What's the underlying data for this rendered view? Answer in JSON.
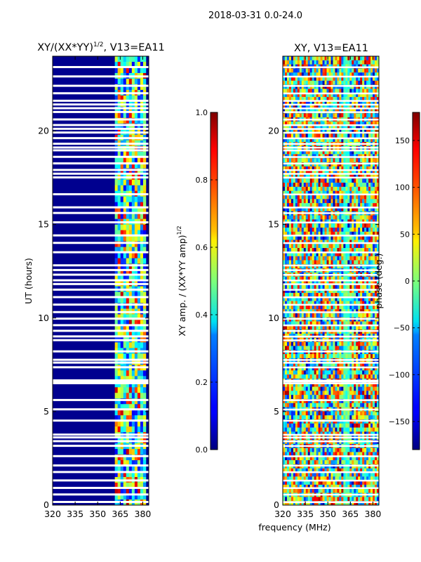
{
  "suptitle": "2018-03-31 0.0-24.0",
  "shared_xlabel": "frequency (MHz)",
  "chart_data": [
    {
      "type": "heatmap",
      "title": "XY/(XX*YY)^1/2, V13=EA11",
      "title_main": "XY/(XX*YY)",
      "title_exp": "1/2",
      "title_tail": ", V13=EA11",
      "xlabel": "",
      "ylabel": "UT (hours)",
      "xlim": [
        320,
        384
      ],
      "ylim": [
        0,
        24
      ],
      "xticks": [
        320,
        335,
        350,
        365,
        380
      ],
      "yticks": [
        0,
        5,
        10,
        15,
        20
      ],
      "colormap": "jet",
      "colorbar": {
        "label": "XY amp. / (XX*YY amp)^1/2",
        "label_main": "XY amp. / (XX*YY amp)",
        "label_exp": "1/2",
        "range": [
          0.0,
          1.0
        ],
        "ticks": [
          "0.0",
          "0.2",
          "0.4",
          "0.6",
          "0.8",
          "1.0"
        ]
      },
      "notes": "Values near 0 for 320-361 MHz; elevated (0.3-0.9) in 361-382 MHz band"
    },
    {
      "type": "heatmap",
      "title": "XY, V13=EA11",
      "xlabel": "frequency (MHz)",
      "ylabel": "",
      "xlim": [
        320,
        384
      ],
      "ylim": [
        0,
        24
      ],
      "xticks": [
        320,
        335,
        350,
        365,
        380
      ],
      "yticks": [
        0,
        5,
        10,
        15,
        20
      ],
      "colormap": "jet",
      "colorbar": {
        "label": "phase (deg.)",
        "range": [
          -180,
          180
        ],
        "ticks": [
          "-150",
          "-100",
          "-50",
          "0",
          "50",
          "100",
          "150"
        ]
      },
      "notes": "Phase values spread across -180..180"
    }
  ],
  "gaps_hours": [
    0.15,
    0.55,
    0.9,
    1.3,
    1.75,
    2.1,
    2.6,
    3.15,
    3.4,
    3.6,
    3.75,
    4.5,
    5.1,
    5.6,
    6.5,
    6.6,
    6.65,
    7.35,
    7.6,
    7.75,
    8.2,
    8.8,
    9.0,
    9.3,
    9.6,
    9.95,
    10.3,
    10.7,
    11.1,
    11.5,
    11.8,
    12.0,
    12.3,
    12.55,
    12.8,
    13.5,
    14.0,
    14.4,
    15.1,
    15.6,
    15.9,
    16.6,
    17.5,
    17.7,
    17.9,
    18.25,
    18.6,
    18.95,
    19.1,
    19.3,
    19.6,
    19.9,
    20.1,
    20.3,
    20.6,
    21.0,
    21.2,
    21.4,
    21.6,
    22.0,
    22.4,
    22.9,
    23.4
  ]
}
